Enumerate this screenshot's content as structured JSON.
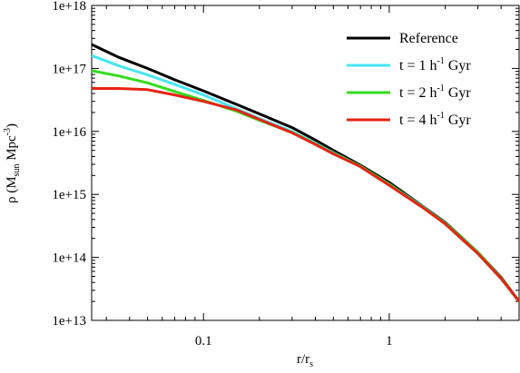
{
  "chart_data": {
    "type": "line",
    "xscale": "log",
    "yscale": "log",
    "xlim": [
      0.025,
      5.0
    ],
    "ylim": [
      10000000000000.0,
      1e+18
    ],
    "xlabel": {
      "main": "r/r",
      "sub": "s"
    },
    "ylabel": {
      "prefix": "ρ (M",
      "sub": "sun",
      "mid": " Mpc",
      "sup": "-3",
      "suffix": ")"
    },
    "x_ticks": [
      {
        "value": 0.1,
        "label": "0.1"
      },
      {
        "value": 1,
        "label": "1"
      }
    ],
    "y_ticks": [
      {
        "value": 10000000000000.0,
        "label": "1e+13"
      },
      {
        "value": 100000000000000.0,
        "label": "1e+14"
      },
      {
        "value": 1000000000000000.0,
        "label": "1e+15"
      },
      {
        "value": 1e+16,
        "label": "1e+16"
      },
      {
        "value": 1e+17,
        "label": "1e+17"
      },
      {
        "value": 1e+18,
        "label": "1e+18"
      }
    ],
    "grid": false,
    "legend_position": "top-right",
    "series": [
      {
        "name": "Reference",
        "legend": {
          "text": "Reference"
        },
        "color": "#000000",
        "points": [
          [
            0.025,
            2.4e+17
          ],
          [
            0.035,
            1.5e+17
          ],
          [
            0.05,
            1e+17
          ],
          [
            0.07,
            6.6e+16
          ],
          [
            0.1,
            4.4e+16
          ],
          [
            0.15,
            2.7e+16
          ],
          [
            0.2,
            1.9e+16
          ],
          [
            0.3,
            1.15e+16
          ],
          [
            0.4,
            7300000000000000.0
          ],
          [
            0.5,
            5000000000000000.0
          ],
          [
            0.7,
            2900000000000000.0
          ],
          [
            1.0,
            1550000000000000.0
          ],
          [
            1.5,
            660000000000000.0
          ],
          [
            2.0,
            360000000000000.0
          ],
          [
            3.0,
            120000000000000.0
          ],
          [
            4.0,
            48000000000000.0
          ],
          [
            5.0,
            20000000000000.0
          ]
        ]
      },
      {
        "name": "t = 1 h-1 Gyr",
        "legend": {
          "pre": "t = 1 h",
          "sup": "-1",
          "post": " Gyr"
        },
        "color": "#44e6f2",
        "points": [
          [
            0.025,
            1.6e+17
          ],
          [
            0.035,
            1.1e+17
          ],
          [
            0.05,
            7.9e+16
          ],
          [
            0.07,
            5.6e+16
          ],
          [
            0.1,
            3.8e+16
          ],
          [
            0.15,
            2.3e+16
          ],
          [
            0.2,
            1.6e+16
          ],
          [
            0.3,
            1e+16
          ],
          [
            0.4,
            6500000000000000.0
          ],
          [
            0.5,
            4600000000000000.0
          ],
          [
            0.7,
            2800000000000000.0
          ],
          [
            1.0,
            1450000000000000.0
          ],
          [
            1.5,
            650000000000000.0
          ],
          [
            2.0,
            350000000000000.0
          ],
          [
            3.0,
            115000000000000.0
          ],
          [
            4.0,
            46000000000000.0
          ],
          [
            5.0,
            20000000000000.0
          ]
        ]
      },
      {
        "name": "t = 2 h-1 Gyr",
        "legend": {
          "pre": "t = 2 h",
          "sup": "-1",
          "post": " Gyr"
        },
        "color": "#33dd1e",
        "points": [
          [
            0.025,
            9.2e+16
          ],
          [
            0.035,
            7.6e+16
          ],
          [
            0.05,
            5.9e+16
          ],
          [
            0.07,
            4.3e+16
          ],
          [
            0.1,
            3.1e+16
          ],
          [
            0.15,
            2.1e+16
          ],
          [
            0.2,
            1.5e+16
          ],
          [
            0.3,
            9600000000000000.0
          ],
          [
            0.4,
            6300000000000000.0
          ],
          [
            0.5,
            4500000000000000.0
          ],
          [
            0.7,
            2800000000000000.0
          ],
          [
            1.0,
            1450000000000000.0
          ],
          [
            1.5,
            640000000000000.0
          ],
          [
            2.0,
            350000000000000.0
          ],
          [
            3.0,
            120000000000000.0
          ],
          [
            4.0,
            47000000000000.0
          ],
          [
            5.0,
            20000000000000.0
          ]
        ]
      },
      {
        "name": "t = 4 h-1 Gyr",
        "legend": {
          "pre": "t = 4 h",
          "sup": "-1",
          "post": " Gyr"
        },
        "color": "#e82212",
        "points": [
          [
            0.025,
            4.8e+16
          ],
          [
            0.035,
            4.8e+16
          ],
          [
            0.05,
            4.6e+16
          ],
          [
            0.07,
            3.8e+16
          ],
          [
            0.1,
            3e+16
          ],
          [
            0.15,
            2.2e+16
          ],
          [
            0.2,
            1.55e+16
          ],
          [
            0.3,
            9500000000000000.0
          ],
          [
            0.4,
            6200000000000000.0
          ],
          [
            0.5,
            4400000000000000.0
          ],
          [
            0.7,
            2750000000000000.0
          ],
          [
            1.0,
            1400000000000000.0
          ],
          [
            1.5,
            630000000000000.0
          ],
          [
            2.0,
            340000000000000.0
          ],
          [
            3.0,
            115000000000000.0
          ],
          [
            4.0,
            46000000000000.0
          ],
          [
            5.0,
            20000000000000.0
          ]
        ]
      }
    ]
  }
}
